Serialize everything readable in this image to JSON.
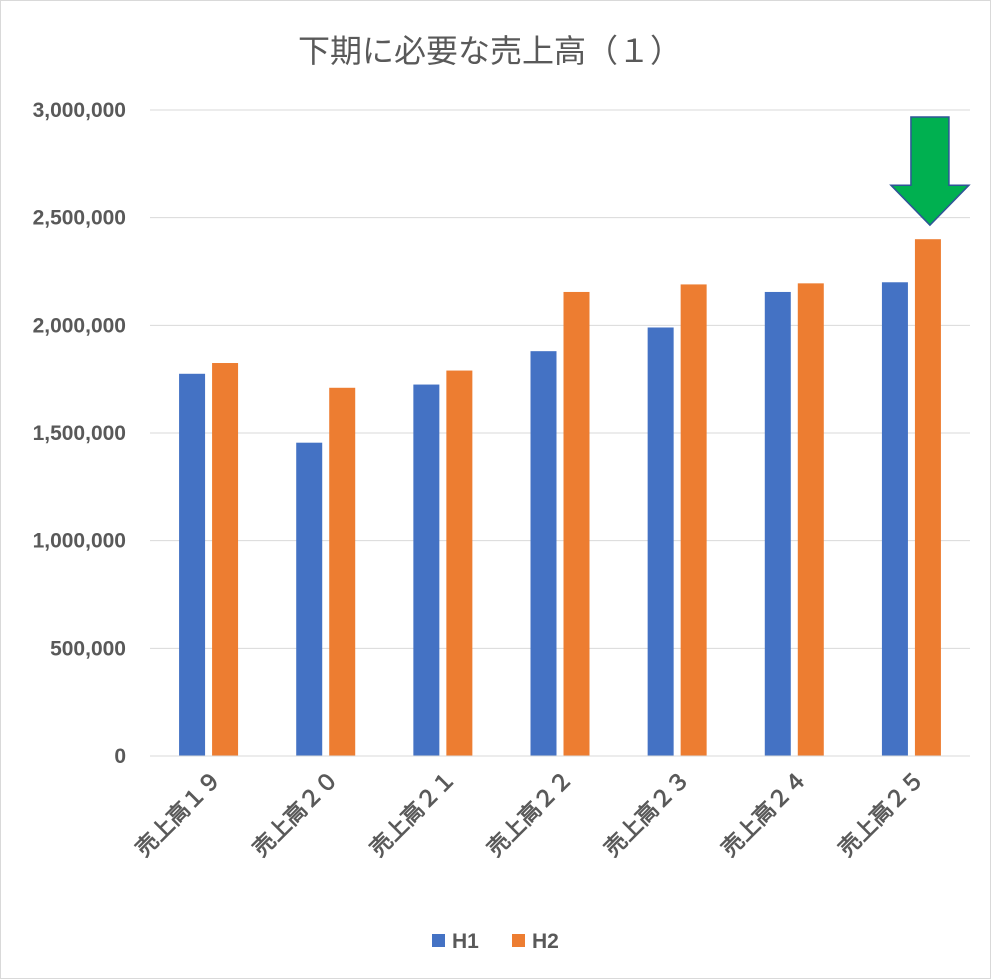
{
  "chart_data": {
    "type": "bar",
    "title": "下期に必要な売上高（１）",
    "categories": [
      "売上高１９",
      "売上高２０",
      "売上高２１",
      "売上高２２",
      "売上高２３",
      "売上高２４",
      "売上高２５"
    ],
    "series": [
      {
        "name": "H1",
        "color": "#4472C4",
        "values": [
          1775000,
          1455000,
          1725000,
          1880000,
          1990000,
          2155000,
          2200000
        ]
      },
      {
        "name": "H2",
        "color": "#ED7D31",
        "values": [
          1825000,
          1710000,
          1790000,
          2155000,
          2190000,
          2195000,
          2400000
        ]
      }
    ],
    "ylim": [
      0,
      3000000
    ],
    "yticks": [
      0,
      500000,
      1000000,
      1500000,
      2000000,
      2500000,
      3000000
    ],
    "ytick_labels": [
      "0",
      "500,000",
      "1,000,000",
      "1,500,000",
      "2,000,000",
      "2,500,000",
      "3,000,000"
    ],
    "grid": true,
    "legend_position": "bottom",
    "annotation": {
      "shape": "down-arrow",
      "color": "#00B050",
      "target_category": "売上高２５",
      "target_series": "H2"
    }
  }
}
